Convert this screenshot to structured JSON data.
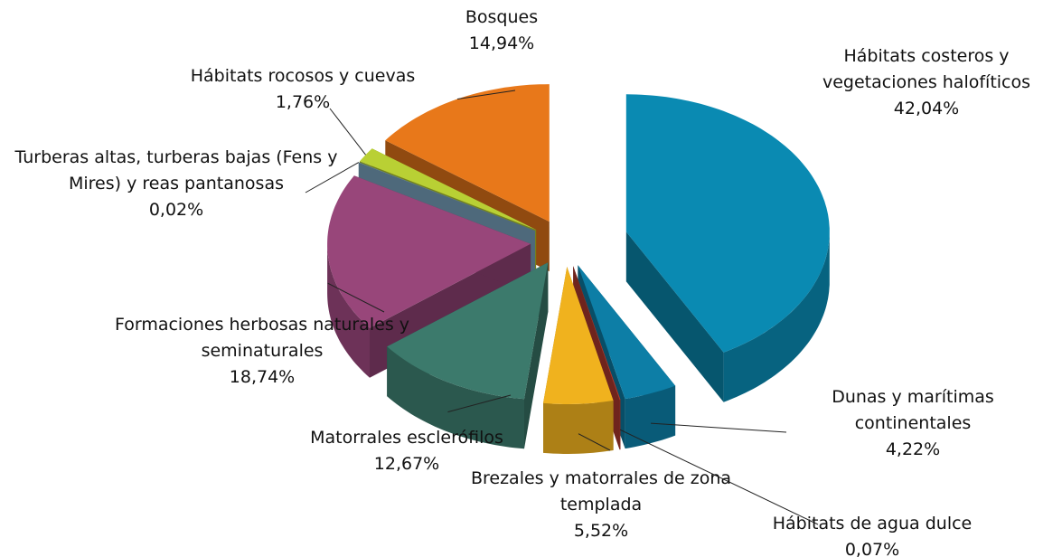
{
  "chart_data": {
    "type": "pie3d",
    "categories": [
      "Hábitats costeros y vegetaciones halofíticos",
      "Dunas y marítimas continentales",
      "Hábitats de agua dulce",
      "Brezales y matorrales de zona templada",
      "Matorrales esclerófilos",
      "Formaciones herbosas naturales y seminaturales",
      "Turberas altas, turberas bajas (Fens y Mires) y reas pantanosas",
      "Hábitats rocosos y cuevas",
      "Bosques"
    ],
    "values": [
      42.04,
      4.22,
      0.07,
      5.52,
      12.67,
      18.74,
      0.02,
      1.76,
      14.94
    ],
    "value_labels": [
      "42,04%",
      "4,22%",
      "0,07%",
      "5,52%",
      "12,67%",
      "18,74%",
      "0,02%",
      "1,76%",
      "14,94%"
    ],
    "colors": [
      "#0a8ab2",
      "#0d7ea6",
      "#b33a2e",
      "#f0b21e",
      "#3c7a6c",
      "#98467a",
      "#7eaac6",
      "#b9d034",
      "#e8781a"
    ]
  }
}
